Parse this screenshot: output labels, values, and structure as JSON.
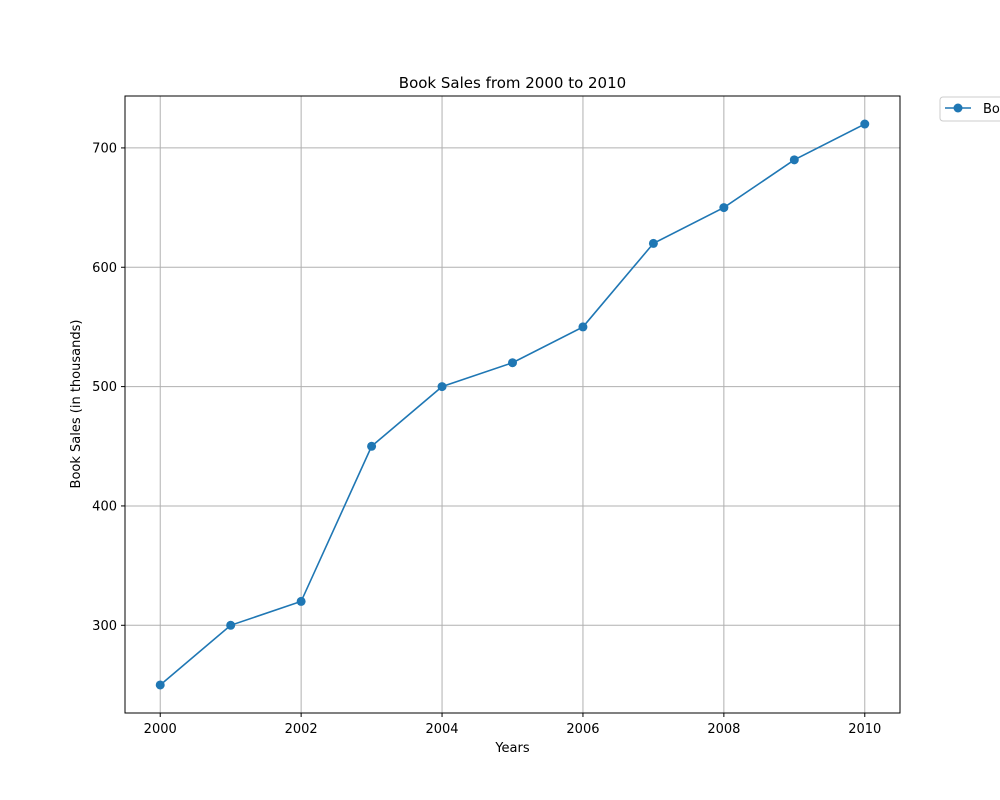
{
  "chart_data": {
    "type": "line",
    "title": "Book Sales from 2000 to 2010",
    "xlabel": "Years",
    "ylabel": "Book Sales (in thousands)",
    "x": [
      2000,
      2001,
      2002,
      2003,
      2004,
      2005,
      2006,
      2007,
      2008,
      2009,
      2010
    ],
    "series": [
      {
        "name": "Bo",
        "values": [
          250,
          300,
          320,
          450,
          500,
          520,
          550,
          620,
          650,
          690,
          720
        ],
        "color": "#1f77b4",
        "marker": "circle"
      }
    ],
    "xlim": [
      1999.5,
      2010.5
    ],
    "ylim": [
      226.5,
      743.5
    ],
    "xticks": [
      2000,
      2002,
      2004,
      2006,
      2008,
      2010
    ],
    "yticks": [
      300,
      400,
      500,
      600,
      700
    ],
    "grid": true,
    "legend_position": "outside top-right"
  }
}
